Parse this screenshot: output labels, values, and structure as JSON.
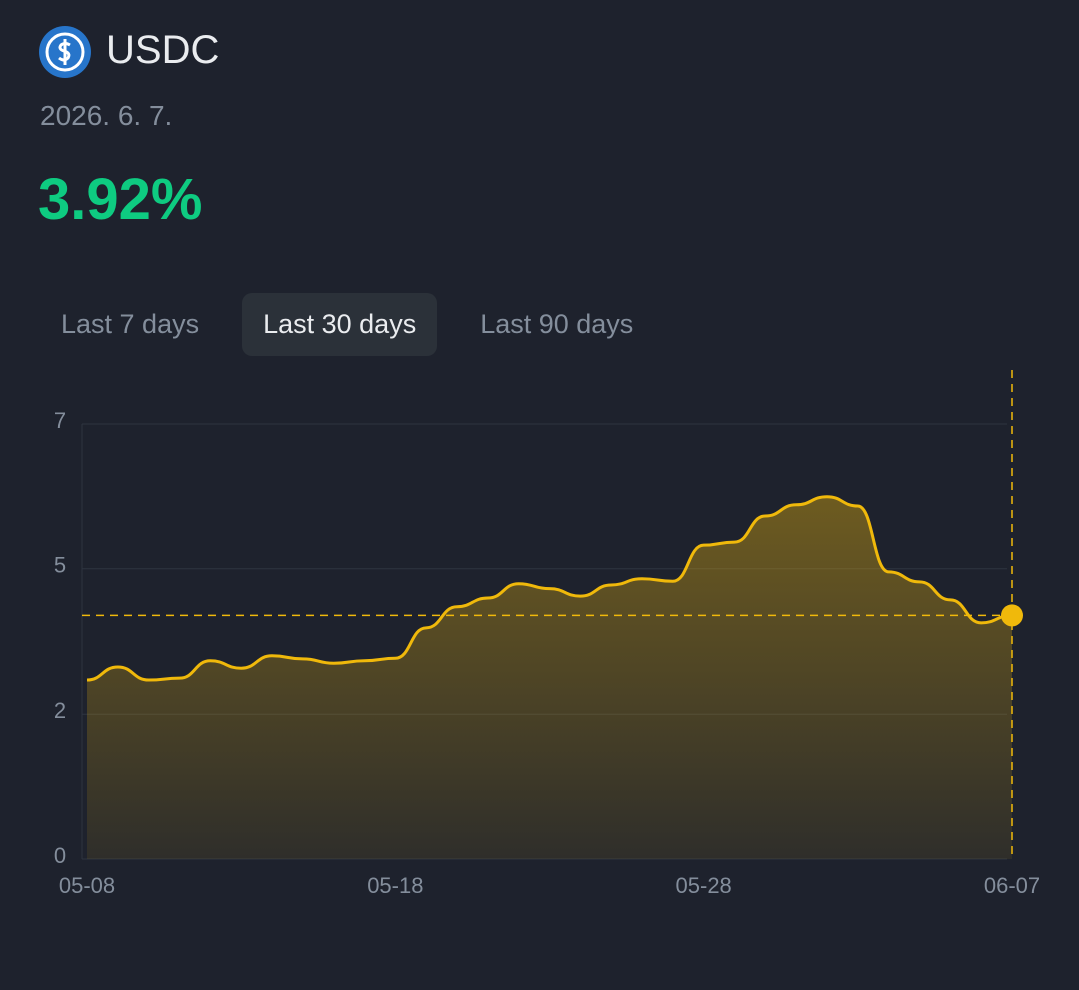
{
  "header": {
    "title": "USDC",
    "date": "2026. 6. 7.",
    "rate": "3.92%"
  },
  "tabs": [
    {
      "label": "Last 7 days",
      "active": false
    },
    {
      "label": "Last 30 days",
      "active": true
    },
    {
      "label": "Last 90 days",
      "active": false
    }
  ],
  "chart_data": {
    "type": "area",
    "categories": [
      "05-08",
      null,
      null,
      null,
      null,
      null,
      null,
      null,
      null,
      null,
      "05-18",
      null,
      null,
      null,
      null,
      null,
      null,
      null,
      null,
      null,
      "05-28",
      null,
      null,
      null,
      null,
      null,
      null,
      null,
      null,
      null,
      "06-07"
    ],
    "series": [
      {
        "name": "USDC",
        "color": "#f0b90b",
        "values": [
          2.88,
          3.09,
          2.88,
          2.91,
          3.19,
          3.07,
          3.27,
          3.22,
          3.15,
          3.19,
          3.23,
          3.72,
          4.06,
          4.2,
          4.43,
          4.35,
          4.23,
          4.41,
          4.51,
          4.47,
          5.05,
          5.1,
          5.52,
          5.7,
          5.83,
          5.68,
          4.62,
          4.46,
          4.17,
          3.8,
          3.92
        ]
      }
    ],
    "ylim": [
      0,
      7
    ],
    "yticks": [
      0,
      {
        "value": 2.33,
        "label": "2"
      },
      {
        "value": 4.67,
        "label": "5"
      },
      7
    ],
    "grid": true
  }
}
